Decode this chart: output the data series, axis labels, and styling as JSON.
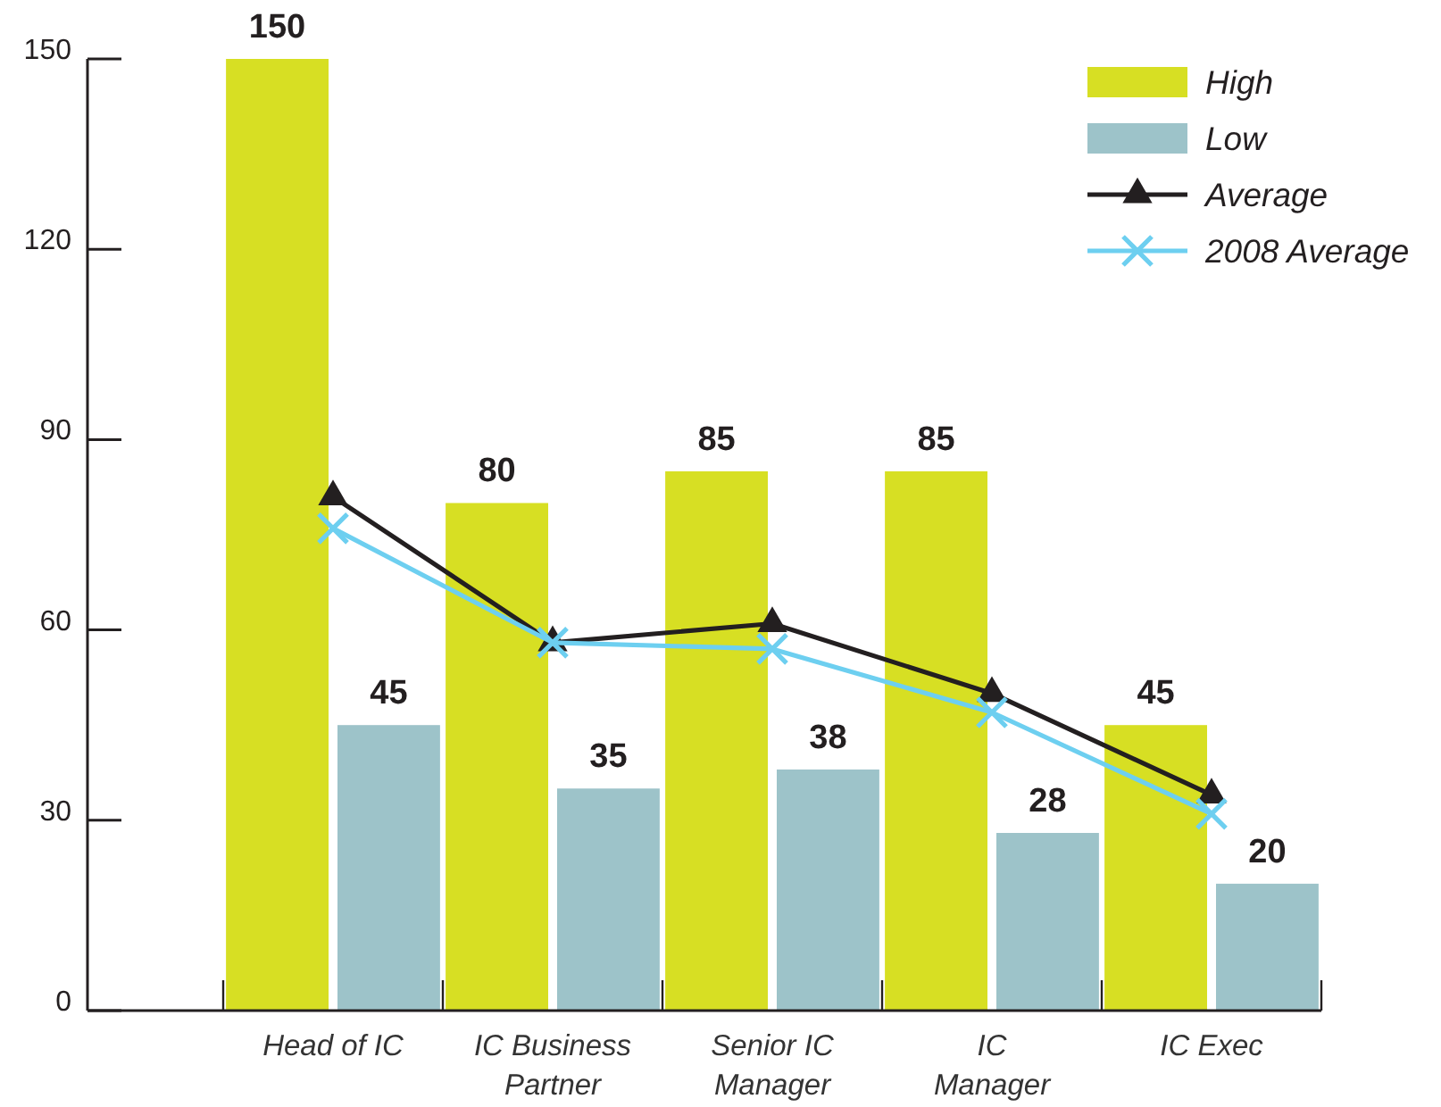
{
  "chart_data": {
    "type": "bar",
    "categories": [
      "Head of IC",
      "IC Business\nPartner",
      "Senior IC\nManager",
      "IC\nManager",
      "IC Exec"
    ],
    "series": [
      {
        "name": "High",
        "color": "#d7df23",
        "values": [
          150,
          80,
          85,
          85,
          45
        ],
        "value_labels": [
          "150",
          "80",
          "85",
          "85",
          "45"
        ]
      },
      {
        "name": "Low",
        "color": "#9dc3c9",
        "values": [
          45,
          35,
          38,
          28,
          20
        ],
        "value_labels": [
          "45",
          "35",
          "38",
          "28",
          "20"
        ]
      },
      {
        "name": "Average",
        "type": "line",
        "color": "#231f20",
        "marker": "triangle",
        "values": [
          81,
          58,
          61,
          50,
          34
        ]
      },
      {
        "name": "2008 Average",
        "type": "line",
        "color": "#6dcff0",
        "marker": "cross",
        "values": [
          76,
          58,
          57,
          47,
          31
        ]
      }
    ],
    "ylim": [
      0,
      150
    ],
    "yticks": [
      0,
      30,
      60,
      90,
      120,
      150
    ],
    "legend": "top right"
  }
}
